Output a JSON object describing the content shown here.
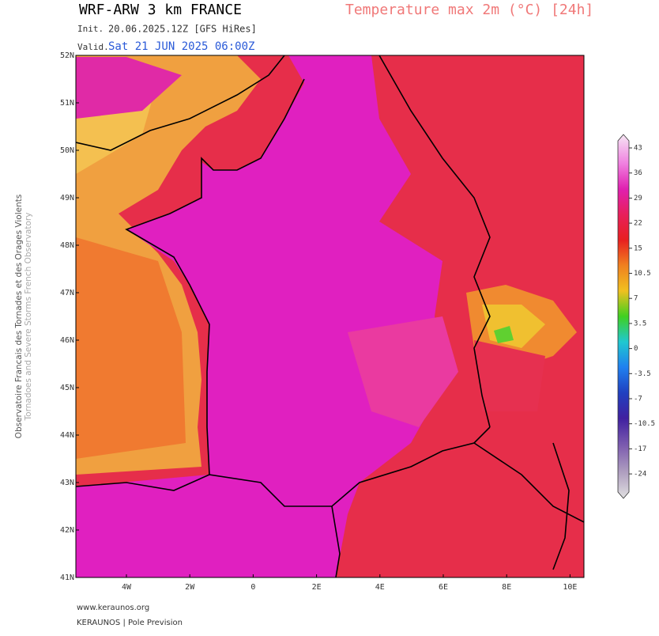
{
  "header": {
    "title": "WRF-ARW 3 km FRANCE",
    "product": "Temperature max 2m (°C) [24h]",
    "init_label": "Init.",
    "init": "20.06.2025.12Z [GFS HiRes]",
    "valid_label": "Valid.",
    "valid": "Sat 21 JUN 2025 06:00Z"
  },
  "map": {
    "lat_labels": [
      "52N",
      "51N",
      "50N",
      "49N",
      "48N",
      "47N",
      "46N",
      "45N",
      "44N",
      "43N",
      "42N",
      "41N"
    ],
    "lon_labels": [
      "4W",
      "2W",
      "0",
      "2E",
      "4E",
      "6E",
      "8E",
      "10E"
    ]
  },
  "colorbar": {
    "labels": [
      "43",
      "36",
      "29",
      "22",
      "15",
      "10.5",
      "7",
      "3.5",
      "0",
      "-3.5",
      "-7",
      "-10.5",
      "-17",
      "-24"
    ]
  },
  "side_text": {
    "line1": "Observatoire Francais des Tornades et des Orages Violents",
    "line2": "Tornadoes and Severe Storms French Observatory"
  },
  "footer": {
    "website": "www.keraunos.org",
    "credit": "KERAUNOS | Pole Prevision"
  }
}
